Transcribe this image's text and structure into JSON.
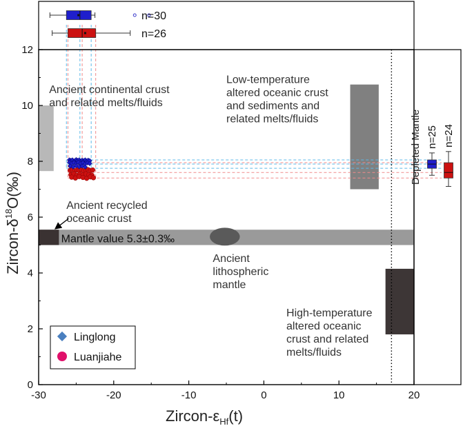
{
  "chart_data": {
    "type": "scatter",
    "xlim": [
      -30,
      20
    ],
    "ylim": [
      0,
      12
    ],
    "xticks": [
      "-30",
      "-20",
      "-10",
      "0",
      "10",
      "20"
    ],
    "yticks": [
      "0",
      "2",
      "4",
      "6",
      "8",
      "10",
      "12"
    ],
    "xlabel": {
      "main": "Zircon-ε",
      "sub": "Hf",
      "tail": "(t)"
    },
    "ylabel": {
      "main": "Zircon-δ",
      "sup": "18",
      "tail": "O(‰)"
    },
    "reference_line": {
      "x": 17,
      "label": "Depleted Mantle"
    },
    "fields": [
      {
        "name": "continental-crust",
        "x": [
          -31,
          -28
        ],
        "y": [
          7.65,
          10.0
        ],
        "color": "#b8b8b8"
      },
      {
        "name": "low-temp-crust",
        "x": [
          11.5,
          15.3
        ],
        "y": [
          7.0,
          10.75
        ],
        "color": "#808080"
      },
      {
        "name": "mantle-value",
        "x": [
          -30,
          20
        ],
        "y": [
          5.0,
          5.55
        ],
        "color": "#9a9a9a"
      },
      {
        "name": "recycled-crust",
        "x": [
          -30,
          -27.3
        ],
        "y": [
          5.0,
          5.55
        ],
        "color": "#3a3232"
      },
      {
        "name": "high-temp-crust",
        "x": [
          16.2,
          20
        ],
        "y": [
          1.8,
          4.15
        ],
        "color": "#3d3636"
      }
    ],
    "ellipse": {
      "name": "lithospheric-mantle",
      "cx": -5.2,
      "cy": 5.3,
      "rx": 2.0,
      "ry": 0.32,
      "color": "#5a5a5a"
    },
    "annotations": [
      {
        "name": "continental",
        "lines": [
          "Ancient continental crust",
          "and related melts/fluids"
        ],
        "x": -28.6,
        "y": 10.45
      },
      {
        "name": "low-temp",
        "lines": [
          "Low-temperature",
          "altered oceanic crust",
          "and sediments and",
          "related melts/fluids"
        ],
        "x": -5.0,
        "y": 10.8
      },
      {
        "name": "recycled",
        "lines": [
          "Ancient recycled",
          "oceanic crust"
        ],
        "x": -26.3,
        "y": 6.3
      },
      {
        "name": "mantle-value",
        "lines": [
          "Mantle value 5.3±0.3‰"
        ],
        "x": -27.0,
        "y": 5.1
      },
      {
        "name": "lithospheric",
        "lines": [
          "Ancient",
          "lithospheric",
          "mantle"
        ],
        "x": -6.8,
        "y": 4.4
      },
      {
        "name": "high-temp",
        "lines": [
          "High-temperature",
          "altered oceanic",
          "crust and related",
          "melts/fluids"
        ],
        "x": 3.0,
        "y": 2.45
      }
    ],
    "series": [
      {
        "name": "Linglong",
        "color": "#1f1fcc",
        "marker": "diamond",
        "n_label": "n=30",
        "hf_box": {
          "whisker": [
            -28.5,
            -22.5
          ],
          "q": [
            -26.3,
            -23.0
          ],
          "median": -24.5,
          "mean": -24.7
        },
        "o_box": {
          "whisker": [
            7.5,
            8.3
          ],
          "q": [
            7.75,
            8.05
          ],
          "median": 7.9
        },
        "points_x": [
          -25.9,
          -25.7,
          -25.5,
          -25.2,
          -25.0,
          -24.8,
          -24.6,
          -24.4,
          -24.2,
          -24.0,
          -23.8,
          -23.6,
          -23.4,
          -23.2,
          -25.9,
          -25.6,
          -25.3,
          -25.0,
          -24.7,
          -24.4,
          -24.1,
          -23.8,
          -23.5,
          -23.2,
          -25.8,
          -25.4,
          -25.0,
          -24.6,
          -24.2,
          -23.8
        ],
        "points_y": [
          8.05,
          8.03,
          8.05,
          8.02,
          8.06,
          8.03,
          8.05,
          8.01,
          8.04,
          8.02,
          8.05,
          8.01,
          8.04,
          8.02,
          7.96,
          7.93,
          7.95,
          7.92,
          7.96,
          7.93,
          7.95,
          7.91,
          7.94,
          7.92,
          7.83,
          7.8,
          7.84,
          7.81,
          7.83,
          7.8
        ]
      },
      {
        "name": "Luanjiahe",
        "color": "#cc1111",
        "marker": "circle",
        "n_label": "n=26",
        "hf_box": {
          "whisker": [
            -28.2,
            -17.8
          ],
          "q": [
            -26.1,
            -22.4
          ],
          "median": -24.2,
          "mean": -23.8
        },
        "o_box": {
          "whisker": [
            7.1,
            8.35
          ],
          "q": [
            7.4,
            7.95
          ],
          "median": 7.6
        },
        "points_x": [
          -25.8,
          -25.5,
          -25.2,
          -24.9,
          -24.6,
          -24.3,
          -24.0,
          -23.7,
          -23.4,
          -23.1,
          -22.8,
          -25.7,
          -25.3,
          -24.9,
          -24.5,
          -24.1,
          -23.7,
          -23.3,
          -22.9,
          -25.6,
          -25.1,
          -24.6,
          -24.1,
          -23.6,
          -23.1,
          -22.7
        ],
        "points_y": [
          7.68,
          7.7,
          7.66,
          7.69,
          7.67,
          7.7,
          7.66,
          7.68,
          7.7,
          7.67,
          7.69,
          7.52,
          7.55,
          7.5,
          7.54,
          7.51,
          7.55,
          7.52,
          7.5,
          7.43,
          7.4,
          7.45,
          7.42,
          7.39,
          7.44,
          7.41
        ]
      }
    ],
    "legend": {
      "placement": "bottom-left",
      "items": [
        "Linglong",
        "Luanjiahe"
      ]
    }
  }
}
